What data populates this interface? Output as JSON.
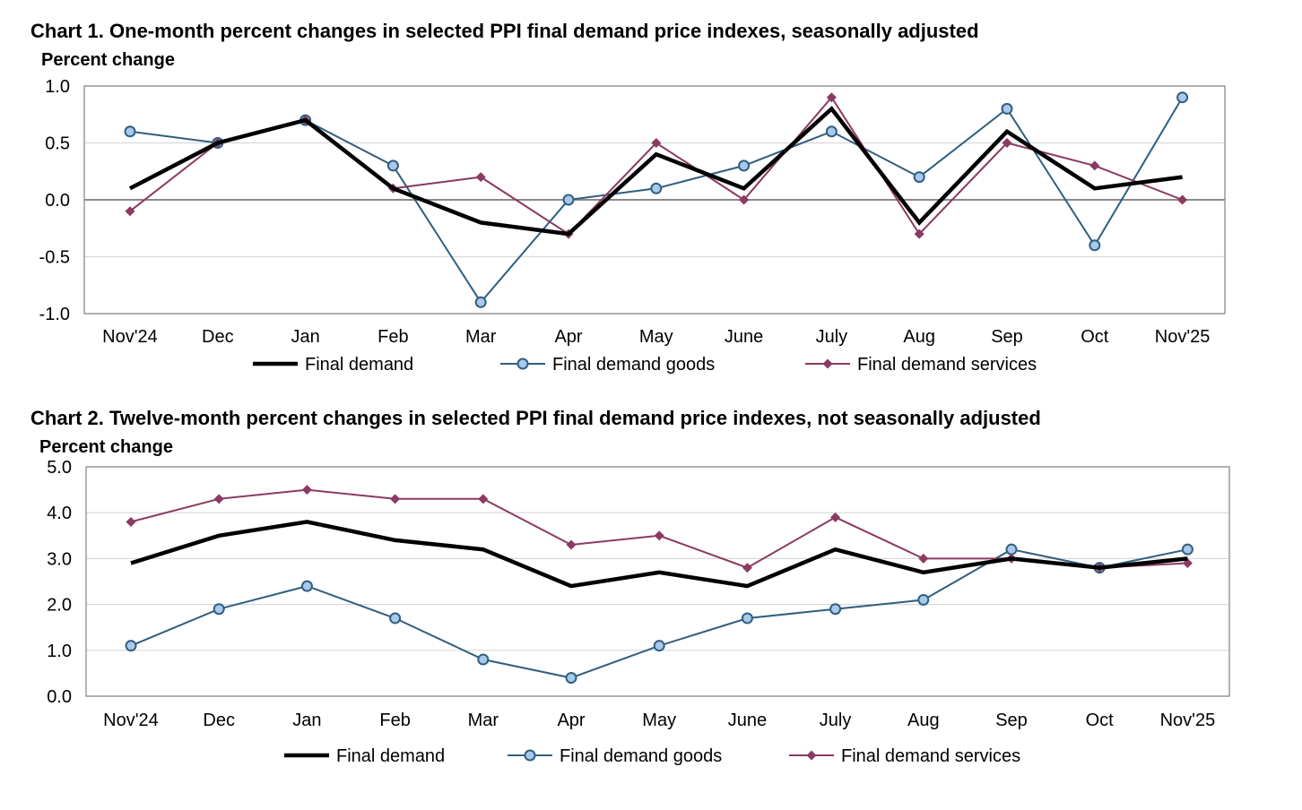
{
  "chart_data": [
    {
      "type": "line",
      "title": "Chart 1. One-month percent changes in selected PPI final demand price indexes, seasonally adjusted",
      "ylabel": "Percent change",
      "xlabel": "",
      "categories": [
        "Nov'24",
        "Dec",
        "Jan",
        "Feb",
        "Mar",
        "Apr",
        "May",
        "June",
        "July",
        "Aug",
        "Sep",
        "Oct",
        "Nov'25"
      ],
      "ylim": [
        -1.0,
        1.0
      ],
      "yticks": [
        "1.0",
        "0.5",
        "0.0",
        "-0.5",
        "-1.0"
      ],
      "grid": true,
      "legend_position": "bottom",
      "series": [
        {
          "name": "Final demand",
          "color": "#000000",
          "marker": "none",
          "values": [
            0.1,
            0.5,
            0.7,
            0.1,
            -0.2,
            -0.3,
            0.4,
            0.1,
            0.8,
            -0.2,
            0.6,
            0.1,
            0.2
          ]
        },
        {
          "name": "Final demand goods",
          "color": "#2f5f7f",
          "marker": "circle",
          "values": [
            0.6,
            0.5,
            0.7,
            0.3,
            -0.9,
            0.0,
            0.1,
            0.3,
            0.6,
            0.2,
            0.8,
            -0.4,
            0.9
          ]
        },
        {
          "name": "Final demand services",
          "color": "#8b3a62",
          "marker": "diamond",
          "values": [
            -0.1,
            0.5,
            0.7,
            0.1,
            0.2,
            -0.3,
            0.5,
            0.0,
            0.9,
            -0.3,
            0.5,
            0.3,
            0.0
          ]
        }
      ]
    },
    {
      "type": "line",
      "title": "Chart 2. Twelve-month percent changes in selected PPI final demand price indexes, not seasonally adjusted",
      "ylabel": "Percent change",
      "xlabel": "",
      "categories": [
        "Nov'24",
        "Dec",
        "Jan",
        "Feb",
        "Mar",
        "Apr",
        "May",
        "June",
        "July",
        "Aug",
        "Sep",
        "Oct",
        "Nov'25"
      ],
      "ylim": [
        0.0,
        5.0
      ],
      "yticks": [
        "5.0",
        "4.0",
        "3.0",
        "2.0",
        "1.0",
        "0.0"
      ],
      "grid": true,
      "legend_position": "bottom",
      "series": [
        {
          "name": "Final demand",
          "color": "#000000",
          "marker": "none",
          "values": [
            2.9,
            3.5,
            3.8,
            3.4,
            3.2,
            2.4,
            2.7,
            2.4,
            3.2,
            2.7,
            3.0,
            2.8,
            3.0
          ]
        },
        {
          "name": "Final demand goods",
          "color": "#2f5f7f",
          "marker": "circle",
          "values": [
            1.1,
            1.9,
            2.4,
            1.7,
            0.8,
            0.4,
            1.1,
            1.7,
            1.9,
            2.1,
            3.2,
            2.8,
            3.2
          ]
        },
        {
          "name": "Final demand services",
          "color": "#8b3a62",
          "marker": "diamond",
          "values": [
            3.8,
            4.3,
            4.5,
            4.3,
            4.3,
            3.3,
            3.5,
            2.8,
            3.9,
            3.0,
            3.0,
            2.8,
            2.9
          ]
        }
      ]
    }
  ],
  "marker_fill": "#a9c8ec"
}
